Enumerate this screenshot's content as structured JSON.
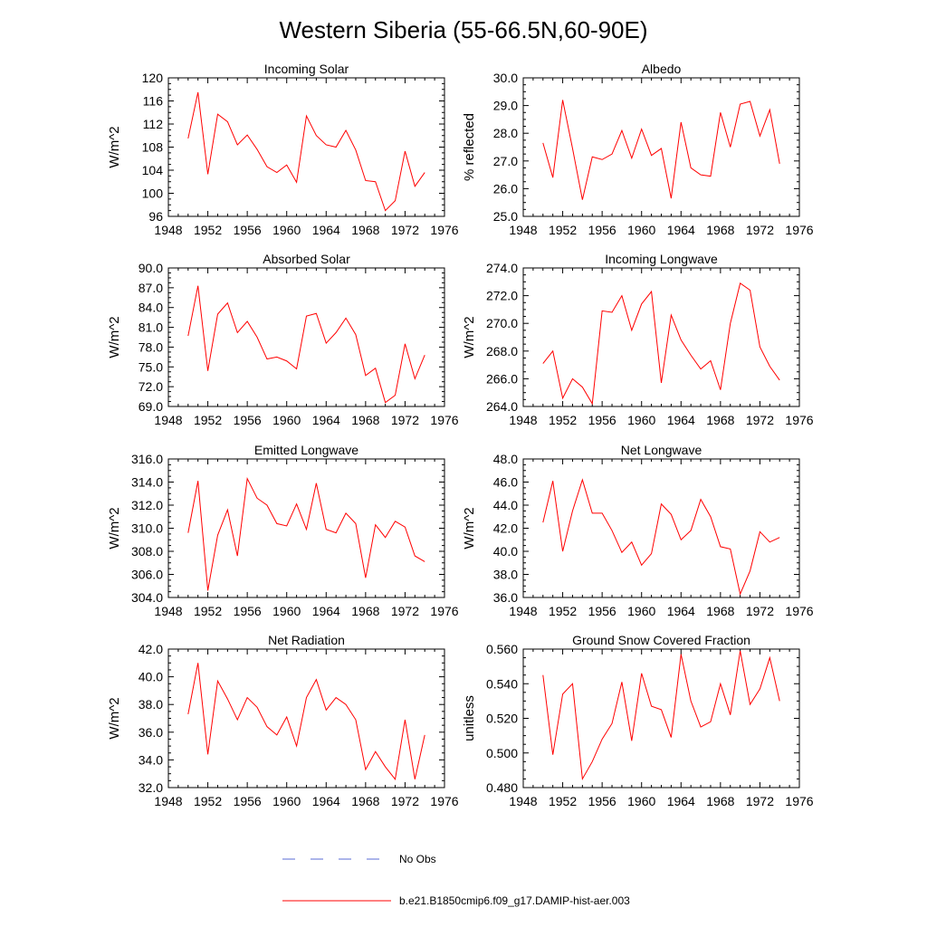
{
  "figure": {
    "title": "Western Siberia (55-66.5N,60-90E)",
    "colors": {
      "model": "#ff0000",
      "obs": "#5a6bd6",
      "axis": "#000000"
    }
  },
  "legend": {
    "position": "bottom-center",
    "items": [
      {
        "label": "No Obs",
        "style": "dashed",
        "color": "#5a6bd6"
      },
      {
        "label": "b.e21.B1850cmip6.f09_g17.DAMIP-hist-aer.003",
        "style": "solid",
        "color": "#ff0000"
      }
    ]
  },
  "chart_data": [
    {
      "type": "line",
      "title": "Incoming Solar",
      "xlabel": "",
      "ylabel": "W/m^2",
      "xlim": [
        1948,
        1976
      ],
      "ylim": [
        96,
        120
      ],
      "xticks": [
        1948,
        1952,
        1956,
        1960,
        1964,
        1968,
        1972,
        1976
      ],
      "yticks": [
        96,
        100,
        104,
        108,
        112,
        116,
        120
      ],
      "ytick_decimals": 0,
      "grid": false,
      "x": [
        1950,
        1951,
        1952,
        1953,
        1954,
        1955,
        1956,
        1957,
        1958,
        1959,
        1960,
        1961,
        1962,
        1963,
        1964,
        1965,
        1966,
        1967,
        1968,
        1969,
        1970,
        1971,
        1972,
        1973,
        1974
      ],
      "series": [
        {
          "values": [
            109.5,
            117.5,
            103.3,
            113.7,
            112.4,
            108.4,
            110.1,
            107.6,
            104.6,
            103.6,
            104.9,
            101.9,
            113.4,
            110.0,
            108.4,
            108.0,
            110.9,
            107.5,
            102.2,
            102.0,
            97.0,
            98.7,
            107.3,
            101.2,
            103.6
          ]
        }
      ]
    },
    {
      "type": "line",
      "title": "Albedo",
      "xlabel": "",
      "ylabel": "% reflected",
      "xlim": [
        1948,
        1976
      ],
      "ylim": [
        25,
        30
      ],
      "xticks": [
        1948,
        1952,
        1956,
        1960,
        1964,
        1968,
        1972,
        1976
      ],
      "yticks": [
        25,
        26,
        27,
        28,
        29,
        30
      ],
      "ytick_decimals": 1,
      "grid": false,
      "x": [
        1950,
        1951,
        1952,
        1953,
        1954,
        1955,
        1956,
        1957,
        1958,
        1959,
        1960,
        1961,
        1962,
        1963,
        1964,
        1965,
        1966,
        1967,
        1968,
        1969,
        1970,
        1971,
        1972,
        1973,
        1974
      ],
      "series": [
        {
          "values": [
            27.65,
            26.4,
            29.2,
            27.45,
            25.6,
            27.15,
            27.05,
            27.25,
            28.1,
            27.1,
            28.15,
            27.2,
            27.45,
            25.65,
            28.4,
            26.75,
            26.5,
            26.45,
            28.75,
            27.5,
            29.05,
            29.15,
            27.9,
            28.85,
            26.9
          ]
        }
      ]
    },
    {
      "type": "line",
      "title": "Absorbed Solar",
      "xlabel": "",
      "ylabel": "W/m^2",
      "xlim": [
        1948,
        1976
      ],
      "ylim": [
        69,
        90
      ],
      "xticks": [
        1948,
        1952,
        1956,
        1960,
        1964,
        1968,
        1972,
        1976
      ],
      "yticks": [
        69,
        72,
        75,
        78,
        81,
        84,
        87,
        90
      ],
      "ytick_decimals": 1,
      "grid": false,
      "x": [
        1950,
        1951,
        1952,
        1953,
        1954,
        1955,
        1956,
        1957,
        1958,
        1959,
        1960,
        1961,
        1962,
        1963,
        1964,
        1965,
        1966,
        1967,
        1968,
        1969,
        1970,
        1971,
        1972,
        1973,
        1974
      ],
      "series": [
        {
          "values": [
            79.7,
            87.3,
            74.4,
            83.0,
            84.7,
            80.2,
            81.9,
            79.5,
            76.2,
            76.5,
            75.9,
            74.7,
            82.7,
            83.1,
            78.6,
            80.2,
            82.4,
            79.9,
            73.7,
            74.8,
            69.6,
            70.7,
            78.5,
            73.2,
            76.8
          ]
        }
      ]
    },
    {
      "type": "line",
      "title": "Incoming Longwave",
      "xlabel": "",
      "ylabel": "W/m^2",
      "xlim": [
        1948,
        1976
      ],
      "ylim": [
        264,
        274
      ],
      "xticks": [
        1948,
        1952,
        1956,
        1960,
        1964,
        1968,
        1972,
        1976
      ],
      "yticks": [
        264,
        266,
        268,
        270,
        272,
        274
      ],
      "ytick_decimals": 1,
      "grid": false,
      "x": [
        1950,
        1951,
        1952,
        1953,
        1954,
        1955,
        1956,
        1957,
        1958,
        1959,
        1960,
        1961,
        1962,
        1963,
        1964,
        1965,
        1966,
        1967,
        1968,
        1969,
        1970,
        1971,
        1972,
        1973,
        1974
      ],
      "series": [
        {
          "values": [
            267.1,
            268.0,
            264.6,
            266.0,
            265.4,
            264.2,
            270.9,
            270.8,
            272.0,
            269.5,
            271.4,
            272.3,
            265.7,
            270.6,
            268.8,
            267.7,
            266.7,
            267.3,
            265.2,
            270.0,
            272.9,
            272.4,
            268.3,
            266.9,
            265.9
          ]
        }
      ]
    },
    {
      "type": "line",
      "title": "Emitted Longwave",
      "xlabel": "",
      "ylabel": "W/m^2",
      "xlim": [
        1948,
        1976
      ],
      "ylim": [
        304,
        316
      ],
      "xticks": [
        1948,
        1952,
        1956,
        1960,
        1964,
        1968,
        1972,
        1976
      ],
      "yticks": [
        304,
        306,
        308,
        310,
        312,
        314,
        316
      ],
      "ytick_decimals": 1,
      "grid": false,
      "x": [
        1950,
        1951,
        1952,
        1953,
        1954,
        1955,
        1956,
        1957,
        1958,
        1959,
        1960,
        1961,
        1962,
        1963,
        1964,
        1965,
        1966,
        1967,
        1968,
        1969,
        1970,
        1971,
        1972,
        1973,
        1974
      ],
      "series": [
        {
          "values": [
            309.6,
            314.1,
            304.6,
            309.4,
            311.6,
            307.6,
            314.3,
            312.6,
            312.0,
            310.4,
            310.2,
            312.1,
            309.9,
            313.9,
            309.9,
            309.6,
            311.3,
            310.4,
            305.7,
            310.3,
            309.2,
            310.6,
            310.1,
            307.6,
            307.1
          ]
        }
      ]
    },
    {
      "type": "line",
      "title": "Net Longwave",
      "xlabel": "",
      "ylabel": "W/m^2",
      "xlim": [
        1948,
        1976
      ],
      "ylim": [
        36,
        48
      ],
      "xticks": [
        1948,
        1952,
        1956,
        1960,
        1964,
        1968,
        1972,
        1976
      ],
      "yticks": [
        36,
        38,
        40,
        42,
        44,
        46,
        48
      ],
      "ytick_decimals": 1,
      "grid": false,
      "x": [
        1950,
        1951,
        1952,
        1953,
        1954,
        1955,
        1956,
        1957,
        1958,
        1959,
        1960,
        1961,
        1962,
        1963,
        1964,
        1965,
        1966,
        1967,
        1968,
        1969,
        1970,
        1971,
        1972,
        1973,
        1974
      ],
      "series": [
        {
          "values": [
            42.5,
            46.1,
            40.0,
            43.5,
            46.2,
            43.3,
            43.3,
            41.8,
            39.9,
            40.8,
            38.8,
            39.8,
            44.1,
            43.2,
            41.0,
            41.8,
            44.5,
            43.0,
            40.4,
            40.2,
            36.3,
            38.3,
            41.7,
            40.8,
            41.2
          ]
        }
      ]
    },
    {
      "type": "line",
      "title": "Net Radiation",
      "xlabel": "",
      "ylabel": "W/m^2",
      "xlim": [
        1948,
        1976
      ],
      "ylim": [
        32,
        42
      ],
      "xticks": [
        1948,
        1952,
        1956,
        1960,
        1964,
        1968,
        1972,
        1976
      ],
      "yticks": [
        32,
        34,
        36,
        38,
        40,
        42
      ],
      "ytick_decimals": 1,
      "grid": false,
      "x": [
        1950,
        1951,
        1952,
        1953,
        1954,
        1955,
        1956,
        1957,
        1958,
        1959,
        1960,
        1961,
        1962,
        1963,
        1964,
        1965,
        1966,
        1967,
        1968,
        1969,
        1970,
        1971,
        1972,
        1973,
        1974
      ],
      "series": [
        {
          "values": [
            37.3,
            41.0,
            34.4,
            39.7,
            38.4,
            36.9,
            38.5,
            37.8,
            36.4,
            35.8,
            37.1,
            35.0,
            38.5,
            39.8,
            37.6,
            38.5,
            38.0,
            36.9,
            33.3,
            34.6,
            33.5,
            32.6,
            36.9,
            32.6,
            35.8
          ]
        }
      ]
    },
    {
      "type": "line",
      "title": "Ground Snow Covered Fraction",
      "xlabel": "",
      "ylabel": "unitless",
      "xlim": [
        1948,
        1976
      ],
      "ylim": [
        0.48,
        0.56
      ],
      "xticks": [
        1948,
        1952,
        1956,
        1960,
        1964,
        1968,
        1972,
        1976
      ],
      "yticks": [
        0.48,
        0.5,
        0.52,
        0.54,
        0.56
      ],
      "ytick_decimals": 3,
      "grid": false,
      "x": [
        1950,
        1951,
        1952,
        1953,
        1954,
        1955,
        1956,
        1957,
        1958,
        1959,
        1960,
        1961,
        1962,
        1963,
        1964,
        1965,
        1966,
        1967,
        1968,
        1969,
        1970,
        1971,
        1972,
        1973,
        1974
      ],
      "series": [
        {
          "values": [
            0.545,
            0.499,
            0.534,
            0.54,
            0.485,
            0.495,
            0.508,
            0.517,
            0.541,
            0.507,
            0.546,
            0.527,
            0.525,
            0.509,
            0.557,
            0.53,
            0.515,
            0.518,
            0.54,
            0.522,
            0.559,
            0.528,
            0.537,
            0.555,
            0.53
          ]
        }
      ]
    }
  ]
}
